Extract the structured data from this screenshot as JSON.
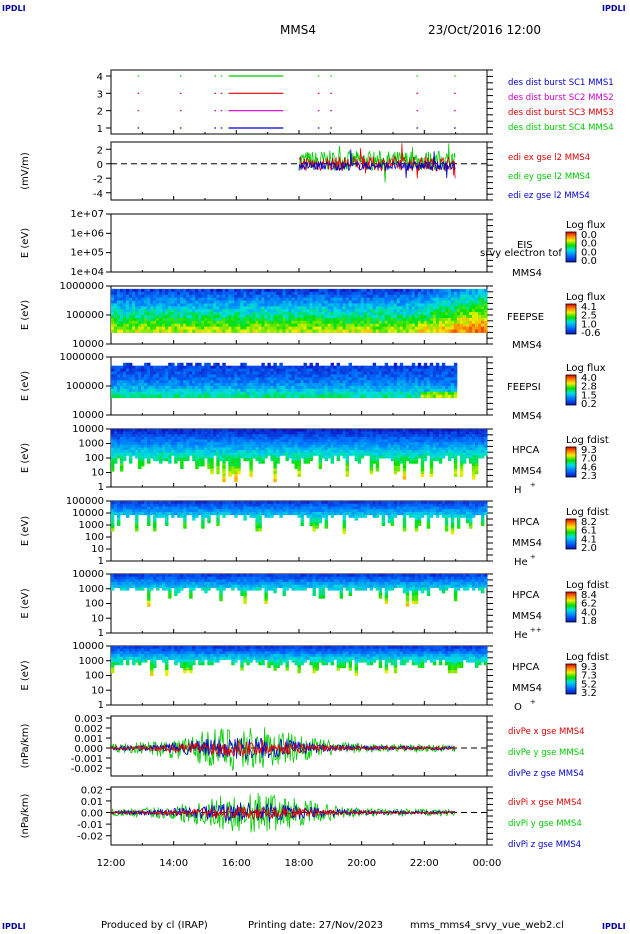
{
  "corner_label": "IPDLI",
  "header": {
    "spacecraft": "MMS4",
    "datetime": "23/Oct/2016 12:00"
  },
  "footer": {
    "produced_by": "Produced by cl (IRAP)",
    "printing_date": "Printing date: 27/Nov/2023",
    "filename": "mms_mms4_srvy_vue_web2.cl"
  },
  "colors": {
    "red": "#dd0000",
    "green": "#00cc00",
    "blue": "#0000cc",
    "magenta": "#cc00cc",
    "frame": "#000000"
  },
  "chart_data": [
    {
      "type": "line",
      "id": "burst",
      "yticks": [
        "4",
        "3",
        "2",
        "1"
      ],
      "yrange": [
        0.5,
        4.5
      ],
      "series": [
        {
          "name": "des dist burst SC1 MMS1",
          "color": "#0000cc"
        },
        {
          "name": "des dist burst SC2 MMS2",
          "color": "#cc00cc"
        },
        {
          "name": "des dist burst SC3 MMS3",
          "color": "#dd0000"
        },
        {
          "name": "des dist burst SC4 MMS4",
          "color": "#00cc00"
        }
      ],
      "burst_intervals_hours": [
        [
          12.85,
          12.9
        ],
        [
          14.2,
          14.25
        ],
        [
          15.3,
          15.35
        ],
        [
          15.5,
          15.55
        ],
        [
          15.75,
          17.5
        ],
        [
          18.6,
          18.65
        ],
        [
          19.0,
          19.05
        ],
        [
          21.75,
          21.8
        ],
        [
          22.95,
          23.0
        ]
      ]
    },
    {
      "type": "line",
      "id": "efield",
      "ylabel": "(mV/m)",
      "yticks": [
        "2",
        "0",
        "-2",
        "-4"
      ],
      "yrange": [
        -5,
        3
      ],
      "series": [
        {
          "name": "edi ex gse l2 MMS4",
          "color": "#dd0000"
        },
        {
          "name": "edi ey gse l2 MMS4",
          "color": "#00cc00"
        },
        {
          "name": "edi ez gse l2 MMS4",
          "color": "#0000cc"
        }
      ],
      "data_start_hour": 18.0
    },
    {
      "type": "heatmap",
      "id": "eis",
      "ylabel": "E (eV)",
      "yticks": [
        "1e+07",
        "1e+06",
        "1e+05",
        "1e+04"
      ],
      "instrument": "EIS",
      "subtitle": "srvy electron tof",
      "sc": "MMS4",
      "cbar_title": "Log flux",
      "cbar_ticks": [
        "0.0",
        "0.0",
        "0.0",
        "0.0"
      ]
    },
    {
      "type": "heatmap",
      "id": "feepse",
      "ylabel": "E (eV)",
      "yticks": [
        "1000000",
        "100000",
        "10000"
      ],
      "instrument": "FEEPSE",
      "sc": "MMS4",
      "cbar_title": "Log flux",
      "cbar_ticks": [
        "4.1",
        "2.5",
        "1.0",
        "-0.6"
      ]
    },
    {
      "type": "heatmap",
      "id": "feepsi",
      "ylabel": "E (eV)",
      "yticks": [
        "1000000",
        "100000",
        "10000"
      ],
      "instrument": "FEEPSI",
      "sc": "MMS4",
      "cbar_title": "Log flux",
      "cbar_ticks": [
        "4.0",
        "2.8",
        "1.5",
        "0.2"
      ]
    },
    {
      "type": "heatmap",
      "id": "hpca_h",
      "ylabel": "E (eV)",
      "yticks": [
        "10000",
        "1000",
        "100",
        "10",
        "1"
      ],
      "instrument": "HPCA",
      "sc": "MMS4",
      "species": "H",
      "charge": "+",
      "cbar_title": "Log fdist",
      "cbar_ticks": [
        "9.3",
        "7.0",
        "4.6",
        "2.3"
      ]
    },
    {
      "type": "heatmap",
      "id": "hpca_he",
      "ylabel": "E (eV)",
      "yticks": [
        "100000",
        "10000",
        "1000",
        "100",
        "10",
        "1"
      ],
      "instrument": "HPCA",
      "sc": "MMS4",
      "species": "He",
      "charge": "+",
      "cbar_title": "Log fdist",
      "cbar_ticks": [
        "8.2",
        "6.1",
        "4.1",
        "2.0"
      ]
    },
    {
      "type": "heatmap",
      "id": "hpca_hepp",
      "ylabel": "E (eV)",
      "yticks": [
        "10000",
        "1000",
        "100",
        "10",
        "1"
      ],
      "instrument": "HPCA",
      "sc": "MMS4",
      "species": "He",
      "charge": "++",
      "cbar_title": "Log fdist",
      "cbar_ticks": [
        "8.4",
        "6.2",
        "4.0",
        "1.8"
      ]
    },
    {
      "type": "heatmap",
      "id": "hpca_o",
      "ylabel": "E (eV)",
      "yticks": [
        "10000",
        "1000",
        "100",
        "10",
        "1"
      ],
      "instrument": "HPCA",
      "sc": "MMS4",
      "species": "O",
      "charge": "+",
      "cbar_title": "Log fdist",
      "cbar_ticks": [
        "9.3",
        "7.3",
        "5.2",
        "3.2"
      ]
    },
    {
      "type": "line",
      "id": "divpe",
      "ylabel": "(nPa/km)",
      "yticks": [
        "0.003",
        "0.002",
        "0.001",
        "0.000",
        "-0.001",
        "-0.002"
      ],
      "yrange": [
        -0.0028,
        0.0032
      ],
      "series": [
        {
          "name": "divPe x gse MMS4",
          "color": "#dd0000"
        },
        {
          "name": "divPe y gse MMS4",
          "color": "#00cc00"
        },
        {
          "name": "divPe z gse MMS4",
          "color": "#0000cc"
        }
      ]
    },
    {
      "type": "line",
      "id": "divpi",
      "ylabel": "(nPa/km)",
      "yticks": [
        "0.02",
        "0.01",
        "0.00",
        "-0.01",
        "-0.02"
      ],
      "yrange": [
        -0.028,
        0.022
      ],
      "series": [
        {
          "name": "divPi x gse MMS4",
          "color": "#dd0000"
        },
        {
          "name": "divPi y gse MMS4",
          "color": "#00cc00"
        },
        {
          "name": "divPi z gse MMS4",
          "color": "#0000cc"
        }
      ]
    }
  ],
  "time_axis": {
    "ticks": [
      "12:00",
      "14:00",
      "16:00",
      "18:00",
      "20:00",
      "22:00",
      "00:00"
    ],
    "start_hour": 12,
    "end_hour": 24,
    "data_end_hour": 23.0
  }
}
